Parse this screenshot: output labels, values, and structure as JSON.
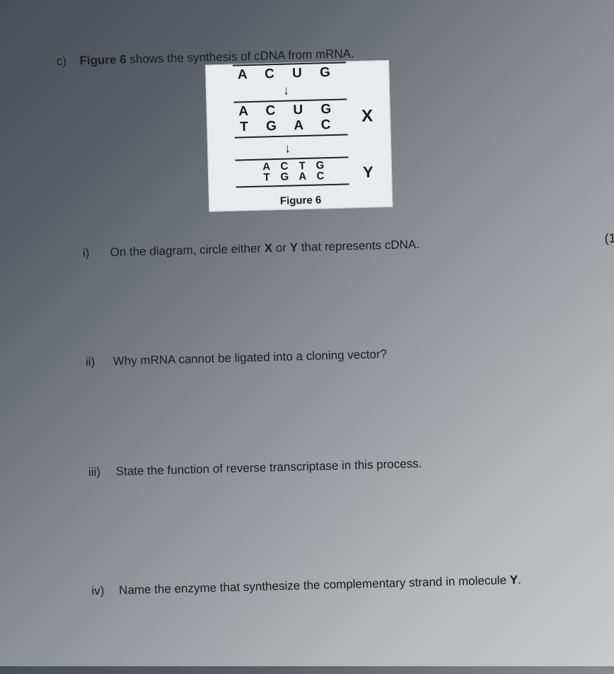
{
  "part_label": "c)",
  "part_text_pre": "Figure 6",
  "part_text_post": " shows the synthesis of cDNA from mRNA.",
  "figure": {
    "seq_top": "A C U G",
    "arrow": "↓",
    "seq_mid_top": "A C U G",
    "seq_mid_bot": "T G A C",
    "label_X": "X",
    "pairs_top": [
      "A",
      "C",
      "T",
      "G"
    ],
    "pairs_bottom": [
      "T",
      "G",
      "A",
      "C"
    ],
    "label_Y": "Y",
    "caption_bold": "Figure 6",
    "background_color": "#e9eaec",
    "line_color": "#222222"
  },
  "questions": {
    "i": {
      "num": "i)",
      "pre": "On the diagram, circle either ",
      "b1": "X",
      "mid": " or ",
      "b2": "Y",
      "post": " that represents cDNA."
    },
    "ii": {
      "num": "ii)",
      "text": "Why mRNA cannot be ligated into a cloning vector?"
    },
    "iii": {
      "num": "iii)",
      "text": "State the function of reverse transcriptase in this process."
    },
    "iv": {
      "num": "iv)",
      "pre": "Name the enzyme that synthesize the complementary strand in molecule ",
      "b": "Y",
      "post": "."
    }
  },
  "mark_fragment": "(1"
}
